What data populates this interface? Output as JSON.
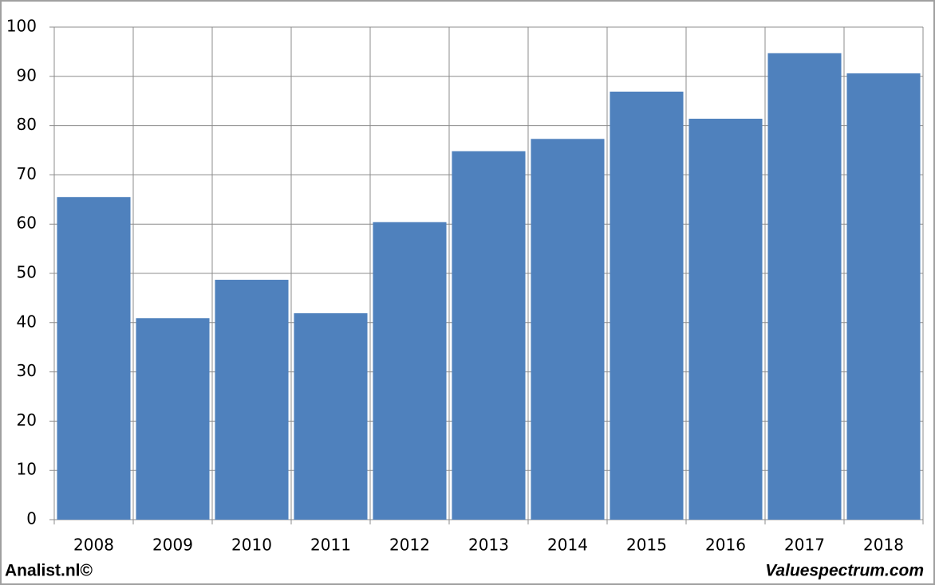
{
  "chart_data": {
    "type": "bar",
    "categories": [
      "2008",
      "2009",
      "2010",
      "2011",
      "2012",
      "2013",
      "2014",
      "2015",
      "2016",
      "2017",
      "2018"
    ],
    "values": [
      65.5,
      40.9,
      48.7,
      41.9,
      60.4,
      74.8,
      77.3,
      86.9,
      81.4,
      94.7,
      90.6
    ],
    "color": "#4f81bd",
    "ylim": [
      0,
      100
    ],
    "yticks": [
      0,
      10,
      20,
      30,
      40,
      50,
      60,
      70,
      80,
      90,
      100
    ],
    "grid": true,
    "footer_left": "Analist.nl©",
    "footer_right": "Valuespectrum.com"
  }
}
